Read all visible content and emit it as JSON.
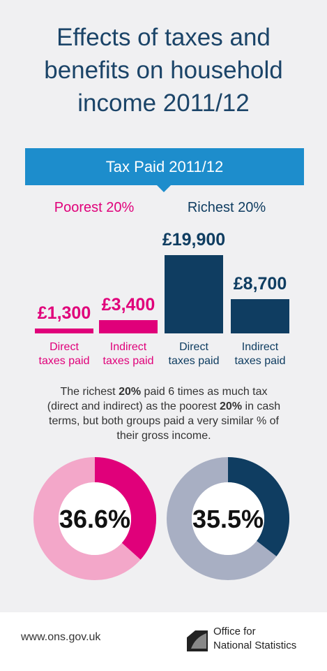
{
  "title": "Effects of taxes and benefits on household income 2011/12",
  "banner": "Tax Paid 2011/12",
  "chart_data": [
    {
      "type": "bar",
      "categories": [
        "Direct taxes paid",
        "Indirect taxes paid"
      ],
      "series": [
        {
          "name": "Poorest 20%",
          "color": "#e0007a",
          "values": [
            1300,
            3400
          ],
          "value_labels": [
            "£1,300",
            "£3,400"
          ]
        },
        {
          "name": "Richest 20%",
          "color": "#0f3d61",
          "values": [
            19900,
            8700
          ],
          "value_labels": [
            "£19,900",
            "£8,700"
          ]
        }
      ]
    },
    {
      "type": "donut",
      "values": [
        36.6
      ],
      "value_labels": [
        "36.6%"
      ],
      "color": "#e0007a",
      "track_color": "#f3a7c9"
    },
    {
      "type": "donut",
      "values": [
        35.5
      ],
      "value_labels": [
        "35.5%"
      ],
      "color": "#0f3d61",
      "track_color": "#a8afc3"
    }
  ],
  "paragraph": [
    {
      "text": "The richest ",
      "bold": false
    },
    {
      "text": "20%",
      "bold": true
    },
    {
      "text": " paid 6 times as much tax (direct and indirect) as the poorest ",
      "bold": false
    },
    {
      "text": "20%",
      "bold": true
    },
    {
      "text": " in cash terms, but both groups paid a very similar % of their gross income.",
      "bold": false
    }
  ],
  "footer": {
    "url": "www.ons.gov.uk",
    "logo_line1": "Office for",
    "logo_line2": "National Statistics"
  }
}
